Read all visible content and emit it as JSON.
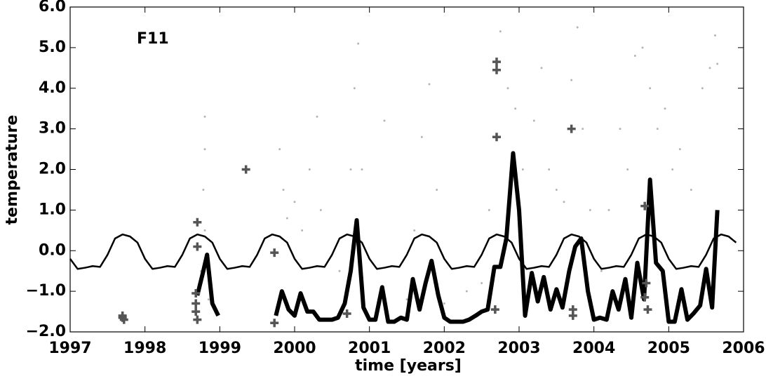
{
  "chart_data": {
    "type": "line",
    "annotation": "F11",
    "xlabel": "time [years]",
    "ylabel": "temperature",
    "xlim": [
      1997,
      2006
    ],
    "xticks": [
      1997,
      1998,
      1999,
      2000,
      2001,
      2002,
      2003,
      2004,
      2005,
      2006
    ],
    "ylim": [
      -2,
      6
    ],
    "yticks": [
      {
        "value": -2,
        "label": "−2.0"
      },
      {
        "value": -1,
        "label": "−1.0"
      },
      {
        "value": 0,
        "label": "0.0"
      },
      {
        "value": 1,
        "label": "1.0"
      },
      {
        "value": 2,
        "label": "2.0"
      },
      {
        "value": 3,
        "label": "3.0"
      },
      {
        "value": 4,
        "label": "4.0"
      },
      {
        "value": 5,
        "label": "5.0"
      },
      {
        "value": 6,
        "label": "6.0"
      }
    ],
    "series": [
      {
        "type": "scatter",
        "marker": "dot",
        "color": "#b4b4b4",
        "x": [
          1998.8,
          1998.8,
          1998.78,
          1998.8,
          1998.75,
          1998.85,
          1999.8,
          1999.85,
          1999.9,
          2000.0,
          2000.1,
          2000.2,
          2000.3,
          2000.35,
          2000.6,
          2000.75,
          2000.8,
          2000.85,
          2000.9,
          2001.2,
          2001.5,
          2001.6,
          2001.7,
          2001.8,
          2001.9,
          2002.0,
          2002.3,
          2002.5,
          2002.6,
          2002.75,
          2002.85,
          2002.95,
          2003.05,
          2003.2,
          2003.3,
          2003.4,
          2003.5,
          2003.6,
          2003.7,
          2003.78,
          2003.85,
          2003.95,
          2004.1,
          2004.2,
          2004.35,
          2004.45,
          2004.55,
          2004.65,
          2004.75,
          2004.85,
          2004.95,
          2005.05,
          2005.15,
          2005.3,
          2005.45,
          2005.55,
          2005.62,
          2005.65
        ],
        "values": [
          3.3,
          2.5,
          1.5,
          0.5,
          -0.5,
          -1.2,
          2.5,
          1.5,
          0.8,
          1.2,
          0.5,
          2.0,
          3.3,
          1.0,
          -0.5,
          2.0,
          4.0,
          5.1,
          2.0,
          3.2,
          -1.2,
          0.5,
          2.8,
          4.1,
          1.5,
          -1.3,
          -1.0,
          -0.8,
          1.0,
          5.4,
          4.0,
          3.5,
          2.0,
          3.2,
          4.5,
          2.0,
          1.5,
          1.2,
          4.2,
          5.5,
          3.0,
          1.0,
          -0.5,
          1.0,
          3.0,
          2.0,
          4.8,
          5.0,
          4.0,
          3.0,
          3.5,
          2.0,
          2.5,
          1.5,
          4.0,
          4.5,
          5.3,
          4.6
        ]
      },
      {
        "type": "line",
        "color": "#000000",
        "x": [
          1997,
          1997.1,
          1997.2,
          1997.3,
          1997.4,
          1997.5,
          1997.6,
          1997.7,
          1997.8,
          1997.9,
          1998,
          1998.1,
          1998.2,
          1998.3,
          1998.4,
          1998.5,
          1998.6,
          1998.7,
          1998.8,
          1998.9,
          1999,
          1999.1,
          1999.2,
          1999.3,
          1999.4,
          1999.5,
          1999.6,
          1999.7,
          1999.8,
          1999.9,
          2000,
          2000.1,
          2000.2,
          2000.3,
          2000.4,
          2000.5,
          2000.6,
          2000.7,
          2000.8,
          2000.9,
          2001,
          2001.1,
          2001.2,
          2001.3,
          2001.4,
          2001.5,
          2001.6,
          2001.7,
          2001.8,
          2001.9,
          2002,
          2002.1,
          2002.2,
          2002.3,
          2002.4,
          2002.5,
          2002.6,
          2002.7,
          2002.8,
          2002.9,
          2003,
          2003.1,
          2003.2,
          2003.3,
          2003.4,
          2003.5,
          2003.6,
          2003.7,
          2003.8,
          2003.9,
          2004,
          2004.1,
          2004.2,
          2004.3,
          2004.4,
          2004.5,
          2004.6,
          2004.7,
          2004.8,
          2004.9,
          2005,
          2005.1,
          2005.2,
          2005.3,
          2005.4,
          2005.5,
          2005.6,
          2005.7,
          2005.8,
          2005.9
        ],
        "values": [
          -0.2,
          -0.45,
          -0.42,
          -0.38,
          -0.4,
          -0.1,
          0.3,
          0.4,
          0.35,
          0.2,
          -0.2,
          -0.45,
          -0.42,
          -0.38,
          -0.4,
          -0.1,
          0.3,
          0.4,
          0.35,
          0.2,
          -0.2,
          -0.45,
          -0.42,
          -0.38,
          -0.4,
          -0.1,
          0.3,
          0.4,
          0.35,
          0.2,
          -0.2,
          -0.45,
          -0.42,
          -0.38,
          -0.4,
          -0.1,
          0.3,
          0.4,
          0.35,
          0.2,
          -0.2,
          -0.45,
          -0.42,
          -0.38,
          -0.4,
          -0.1,
          0.3,
          0.4,
          0.35,
          0.2,
          -0.2,
          -0.45,
          -0.42,
          -0.38,
          -0.4,
          -0.1,
          0.3,
          0.4,
          0.35,
          0.2,
          -0.2,
          -0.45,
          -0.42,
          -0.38,
          -0.4,
          -0.1,
          0.3,
          0.4,
          0.35,
          0.2,
          -0.2,
          -0.45,
          -0.42,
          -0.38,
          -0.4,
          -0.1,
          0.3,
          0.4,
          0.35,
          0.2,
          -0.2,
          -0.45,
          -0.42,
          -0.38,
          -0.4,
          -0.1,
          0.3,
          0.4,
          0.35,
          0.2
        ]
      },
      {
        "type": "line",
        "color": "#000000",
        "x": [
          1998.7,
          1998.78,
          1998.83,
          1998.9,
          1998.98,
          1999.4,
          1999.75,
          1999.83,
          1999.92,
          2000.0,
          2000.08,
          2000.17,
          2000.25,
          2000.33,
          2000.42,
          2000.5,
          2000.58,
          2000.67,
          2000.75,
          2000.83,
          2000.92,
          2001.0,
          2001.08,
          2001.17,
          2001.25,
          2001.33,
          2001.42,
          2001.5,
          2001.58,
          2001.67,
          2001.75,
          2001.83,
          2001.92,
          2002.0,
          2002.08,
          2002.17,
          2002.25,
          2002.33,
          2002.42,
          2002.5,
          2002.58,
          2002.67,
          2002.75,
          2002.83,
          2002.92,
          2003.0,
          2003.08,
          2003.17,
          2003.25,
          2003.33,
          2003.42,
          2003.5,
          2003.58,
          2003.67,
          2003.75,
          2003.83,
          2003.92,
          2004.0,
          2004.08,
          2004.17,
          2004.25,
          2004.33,
          2004.42,
          2004.5,
          2004.58,
          2004.67,
          2004.75,
          2004.83,
          2004.92,
          2005.0,
          2005.08,
          2005.17,
          2005.25,
          2005.33,
          2005.42,
          2005.5,
          2005.58,
          2005.65
        ],
        "values": [
          -1.1,
          -0.5,
          -0.1,
          -1.3,
          -1.6,
          null,
          -1.6,
          -1.0,
          -1.45,
          -1.6,
          -1.05,
          -1.5,
          -1.5,
          -1.7,
          -1.7,
          -1.7,
          -1.65,
          -1.3,
          -0.5,
          0.75,
          -1.4,
          -1.7,
          -1.7,
          -0.9,
          -1.75,
          -1.75,
          -1.65,
          -1.7,
          -0.7,
          -1.45,
          -0.8,
          -0.25,
          -1.1,
          -1.65,
          -1.75,
          -1.75,
          -1.75,
          -1.7,
          -1.6,
          -1.5,
          -1.45,
          -0.4,
          -0.4,
          0.3,
          2.4,
          1.0,
          -1.6,
          -0.55,
          -1.25,
          -0.65,
          -1.45,
          -0.95,
          -1.4,
          -0.5,
          0.1,
          0.3,
          -1.0,
          -1.7,
          -1.65,
          -1.7,
          -1.0,
          -1.45,
          -0.7,
          -1.65,
          -0.3,
          -1.2,
          1.75,
          -0.3,
          -0.5,
          -1.75,
          -1.75,
          -0.95,
          -1.7,
          -1.55,
          -1.35,
          -0.45,
          -1.4,
          1.0
        ]
      },
      {
        "type": "scatter",
        "marker": "plus",
        "color": "#555555",
        "x": [
          1997.7,
          1997.7,
          1997.72,
          1998.7,
          1998.7,
          1998.68,
          1998.68,
          1998.68,
          1998.7,
          1999.35,
          1999.73,
          1999.73,
          2000.7,
          2002.7,
          2002.7,
          2002.7,
          2002.68,
          2003.7,
          2003.72,
          2003.72,
          2004.68,
          2004.7,
          2004.68,
          2004.72
        ],
        "values": [
          -1.6,
          -1.65,
          -1.7,
          0.7,
          0.1,
          -1.05,
          -1.3,
          -1.5,
          -1.7,
          2.0,
          -0.05,
          -1.78,
          -1.55,
          4.65,
          4.45,
          2.8,
          -1.45,
          3.0,
          -1.45,
          -1.6,
          1.1,
          -0.8,
          -1.15,
          -1.45
        ]
      }
    ]
  }
}
